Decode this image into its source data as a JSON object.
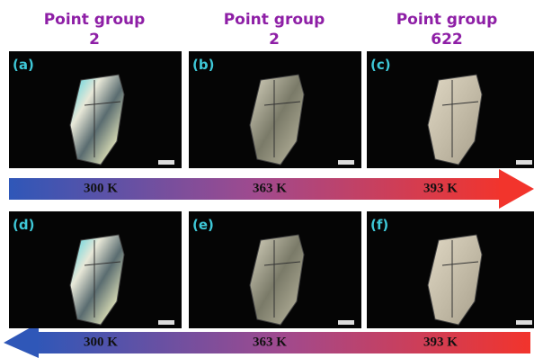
{
  "headers": [
    {
      "title": "Point group",
      "value": "2"
    },
    {
      "title": "Point group",
      "value": "2"
    },
    {
      "title": "Point group",
      "value": "622"
    }
  ],
  "panels": [
    {
      "label": "(a)"
    },
    {
      "label": "(b)"
    },
    {
      "label": "(c)"
    },
    {
      "label": "(f)"
    },
    {
      "label": "(e)"
    },
    {
      "label": "(d)"
    }
  ],
  "arrows": [
    {
      "labels": [
        "300 K",
        "363 K",
        "393 K"
      ]
    },
    {
      "labels": [
        "300 K",
        "363 K",
        "393 K"
      ]
    }
  ]
}
